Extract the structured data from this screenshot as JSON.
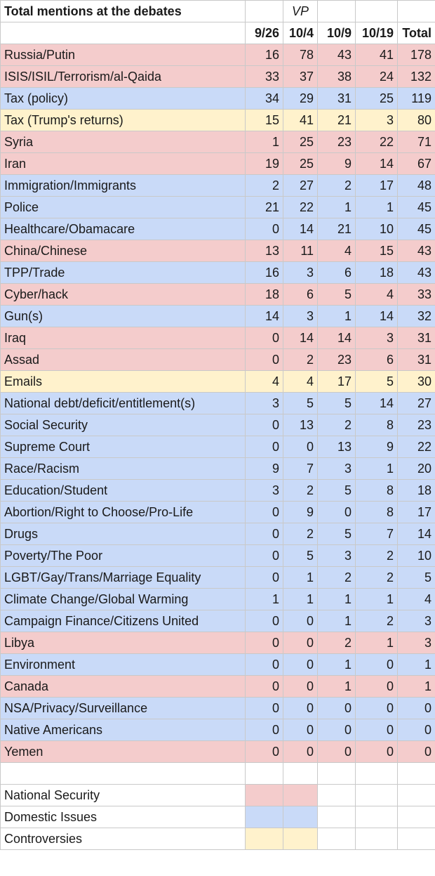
{
  "title": "Total mentions at the debates",
  "vp_label": "VP",
  "columns": [
    "9/26",
    "10/4",
    "10/9",
    "10/19",
    "Total"
  ],
  "colors": {
    "national": "#f4cccc",
    "domestic": "#c9daf8",
    "controversy": "#fff2cc"
  },
  "rows": [
    {
      "topic": "Russia/Putin",
      "cat": "national",
      "v": [
        "16",
        "78",
        "43",
        "41",
        "178"
      ]
    },
    {
      "topic": "ISIS/ISIL/Terrorism/al-Qaida",
      "cat": "national",
      "v": [
        "33",
        "37",
        "38",
        "24",
        "132"
      ]
    },
    {
      "topic": "Tax (policy)",
      "cat": "domestic",
      "v": [
        "34",
        "29",
        "31",
        "25",
        "119"
      ]
    },
    {
      "topic": "Tax (Trump's returns)",
      "cat": "controversy",
      "v": [
        "15",
        "41",
        "21",
        "3",
        "80"
      ]
    },
    {
      "topic": "Syria",
      "cat": "national",
      "v": [
        "1",
        "25",
        "23",
        "22",
        "71"
      ]
    },
    {
      "topic": "Iran",
      "cat": "national",
      "v": [
        "19",
        "25",
        "9",
        "14",
        "67"
      ]
    },
    {
      "topic": "Immigration/Immigrants",
      "cat": "domestic",
      "v": [
        "2",
        "27",
        "2",
        "17",
        "48"
      ]
    },
    {
      "topic": "Police",
      "cat": "domestic",
      "v": [
        "21",
        "22",
        "1",
        "1",
        "45"
      ]
    },
    {
      "topic": "Healthcare/Obamacare",
      "cat": "domestic",
      "v": [
        "0",
        "14",
        "21",
        "10",
        "45"
      ]
    },
    {
      "topic": "China/Chinese",
      "cat": "national",
      "v": [
        "13",
        "11",
        "4",
        "15",
        "43"
      ]
    },
    {
      "topic": "TPP/Trade",
      "cat": "domestic",
      "v": [
        "16",
        "3",
        "6",
        "18",
        "43"
      ]
    },
    {
      "topic": "Cyber/hack",
      "cat": "national",
      "v": [
        "18",
        "6",
        "5",
        "4",
        "33"
      ]
    },
    {
      "topic": "Gun(s)",
      "cat": "domestic",
      "v": [
        "14",
        "3",
        "1",
        "14",
        "32"
      ]
    },
    {
      "topic": "Iraq",
      "cat": "national",
      "v": [
        "0",
        "14",
        "14",
        "3",
        "31"
      ]
    },
    {
      "topic": "Assad",
      "cat": "national",
      "v": [
        "0",
        "2",
        "23",
        "6",
        "31"
      ]
    },
    {
      "topic": "Emails",
      "cat": "controversy",
      "v": [
        "4",
        "4",
        "17",
        "5",
        "30"
      ]
    },
    {
      "topic": "National debt/deficit/entitlement(s)",
      "cat": "domestic",
      "v": [
        "3",
        "5",
        "5",
        "14",
        "27"
      ]
    },
    {
      "topic": "Social Security",
      "cat": "domestic",
      "v": [
        "0",
        "13",
        "2",
        "8",
        "23"
      ]
    },
    {
      "topic": "Supreme Court",
      "cat": "domestic",
      "v": [
        "0",
        "0",
        "13",
        "9",
        "22"
      ]
    },
    {
      "topic": "Race/Racism",
      "cat": "domestic",
      "v": [
        "9",
        "7",
        "3",
        "1",
        "20"
      ]
    },
    {
      "topic": "Education/Student",
      "cat": "domestic",
      "v": [
        "3",
        "2",
        "5",
        "8",
        "18"
      ]
    },
    {
      "topic": "Abortion/Right to Choose/Pro-Life",
      "cat": "domestic",
      "v": [
        "0",
        "9",
        "0",
        "8",
        "17"
      ]
    },
    {
      "topic": "Drugs",
      "cat": "domestic",
      "v": [
        "0",
        "2",
        "5",
        "7",
        "14"
      ]
    },
    {
      "topic": "Poverty/The Poor",
      "cat": "domestic",
      "v": [
        "0",
        "5",
        "3",
        "2",
        "10"
      ]
    },
    {
      "topic": "LGBT/Gay/Trans/Marriage Equality",
      "cat": "domestic",
      "v": [
        "0",
        "1",
        "2",
        "2",
        "5"
      ]
    },
    {
      "topic": "Climate Change/Global Warming",
      "cat": "domestic",
      "v": [
        "1",
        "1",
        "1",
        "1",
        "4"
      ]
    },
    {
      "topic": "Campaign Finance/Citizens United",
      "cat": "domestic",
      "v": [
        "0",
        "0",
        "1",
        "2",
        "3"
      ]
    },
    {
      "topic": "Libya",
      "cat": "national",
      "v": [
        "0",
        "0",
        "2",
        "1",
        "3"
      ]
    },
    {
      "topic": "Environment",
      "cat": "domestic",
      "v": [
        "0",
        "0",
        "1",
        "0",
        "1"
      ]
    },
    {
      "topic": "Canada",
      "cat": "national",
      "v": [
        "0",
        "0",
        "1",
        "0",
        "1"
      ]
    },
    {
      "topic": "NSA/Privacy/Surveillance",
      "cat": "domestic",
      "v": [
        "0",
        "0",
        "0",
        "0",
        "0"
      ]
    },
    {
      "topic": "Native Americans",
      "cat": "domestic",
      "v": [
        "0",
        "0",
        "0",
        "0",
        "0"
      ]
    },
    {
      "topic": "Yemen",
      "cat": "national",
      "v": [
        "0",
        "0",
        "0",
        "0",
        "0"
      ]
    }
  ],
  "legend": [
    {
      "label": "National Security",
      "cat": "national"
    },
    {
      "label": "Domestic Issues",
      "cat": "domestic"
    },
    {
      "label": "Controversies",
      "cat": "controversy"
    }
  ]
}
